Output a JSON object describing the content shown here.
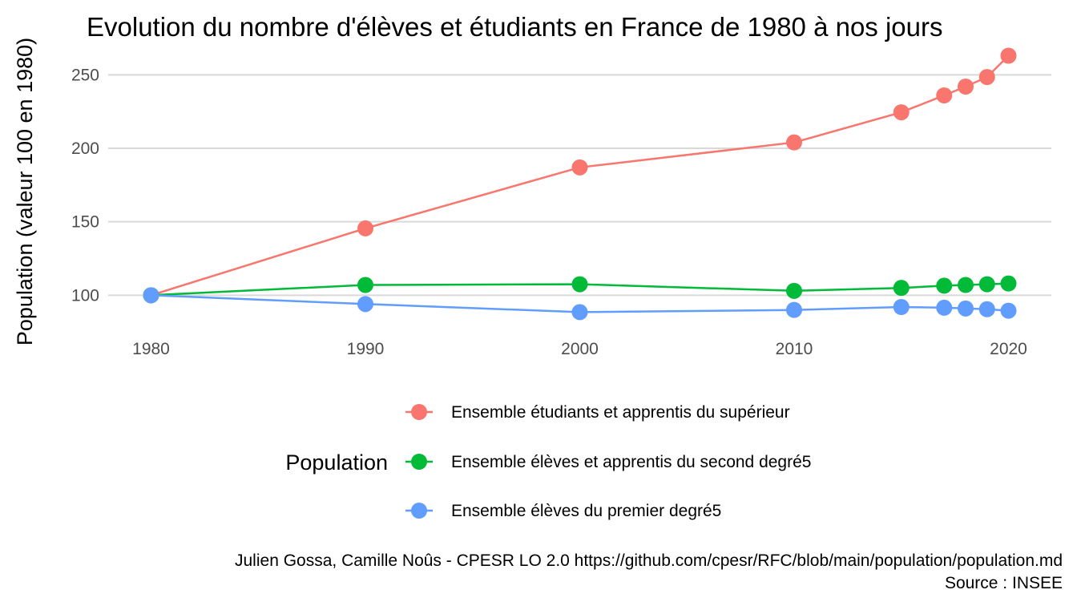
{
  "chart_data": {
    "type": "line",
    "title": "Evolution du nombre d'élèves et étudiants en France de 1980 à nos jours",
    "xlabel": "",
    "ylabel": "Population (valeur 100 en 1980)",
    "xlim": [
      1978,
      2022
    ],
    "ylim": [
      80,
      266
    ],
    "x_ticks": [
      1980,
      1990,
      2000,
      2010,
      2020
    ],
    "y_ticks": [
      100,
      150,
      200,
      250
    ],
    "grid": true,
    "legend": {
      "title": "Population",
      "placement": "bottom"
    },
    "x": [
      1980,
      1990,
      2000,
      2010,
      2015,
      2017,
      2018,
      2019,
      2020
    ],
    "series": [
      {
        "name": "Ensemble étudiants et apprentis du supérieur",
        "color": "#F8766D",
        "values": [
          100,
          145.5,
          187,
          204,
          224.5,
          236,
          242,
          248.5,
          263
        ]
      },
      {
        "name": "Ensemble élèves et apprentis du second degré5",
        "color": "#00BA38",
        "values": [
          100,
          107,
          107.5,
          103,
          105,
          106.5,
          107,
          107.5,
          108
        ]
      },
      {
        "name": "Ensemble élèves du premier degré5",
        "color": "#619CFF",
        "values": [
          100,
          94,
          88.5,
          90,
          92,
          91.5,
          91,
          90.5,
          89.5
        ]
      }
    ],
    "caption": [
      "Julien Gossa, Camille Noûs - CPESR LO 2.0 https://github.com/cpesr/RFC/blob/main/population/population.md",
      "Source : INSEE"
    ]
  }
}
